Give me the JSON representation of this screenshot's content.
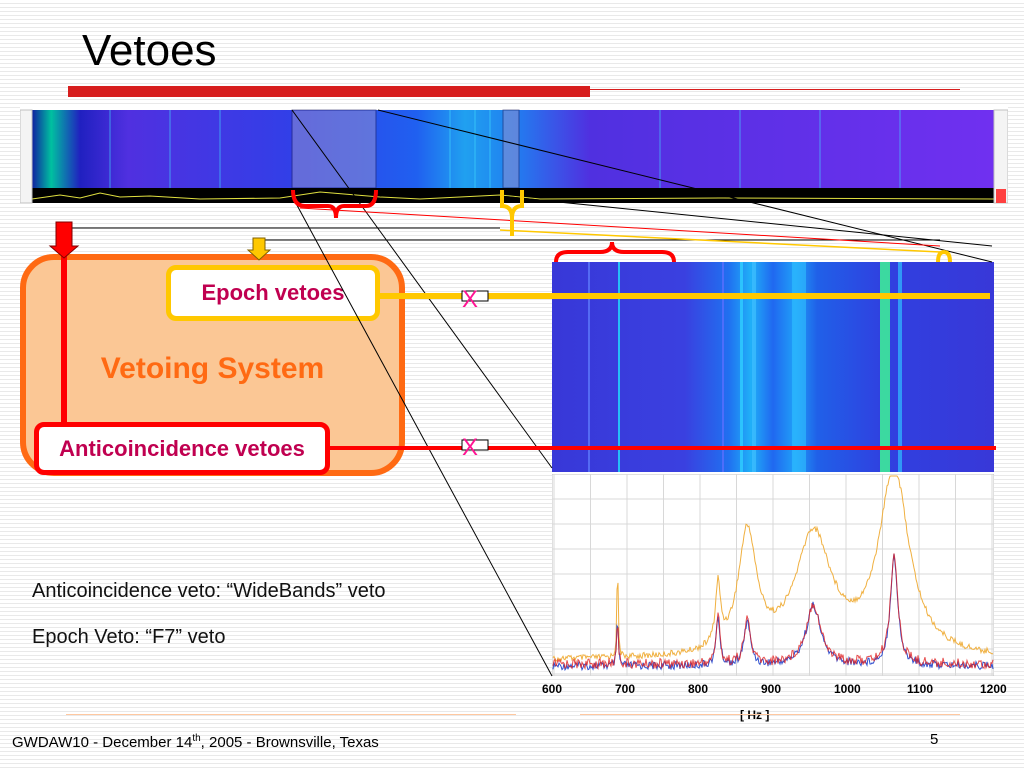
{
  "slide": {
    "title": "Vetoes",
    "page_number": "5"
  },
  "diagram": {
    "vetoing_system_label": "Vetoing System",
    "epoch_vetoes_label": "Epoch vetoes",
    "anticoincidence_vetoes_label": "Anticoincidence vetoes",
    "veto_mark": "X"
  },
  "body": {
    "line1": "Anticoincidence veto: “WideBands” veto",
    "line2": "Epoch Veto: “F7” veto"
  },
  "footer": {
    "pre": "GWDAW10 - December 14",
    "sup": "th",
    "post": ", 2005 - Brownsville, Texas"
  },
  "colors": {
    "title_red": "#d71e1e",
    "vetoing_orange": "#ff6a13",
    "epoch_yellow": "#ffc800",
    "anti_red": "#ff0000",
    "label_magenta": "#c00050",
    "spectrogram_blue": "#3b3bdf",
    "trace_orange": "#f0b040",
    "trace_blue": "#3050d0",
    "trace_red": "#e02020"
  },
  "chart_data": {
    "type": "line",
    "x_tick_labels": [
      "600",
      "700",
      "800",
      "900",
      "1000",
      "1100",
      "1200"
    ],
    "xlabel": "[ Hz ]",
    "xlim": [
      600,
      1200
    ],
    "grid": true,
    "peaks_hz": [
      688,
      825,
      865,
      955,
      1065
    ]
  }
}
